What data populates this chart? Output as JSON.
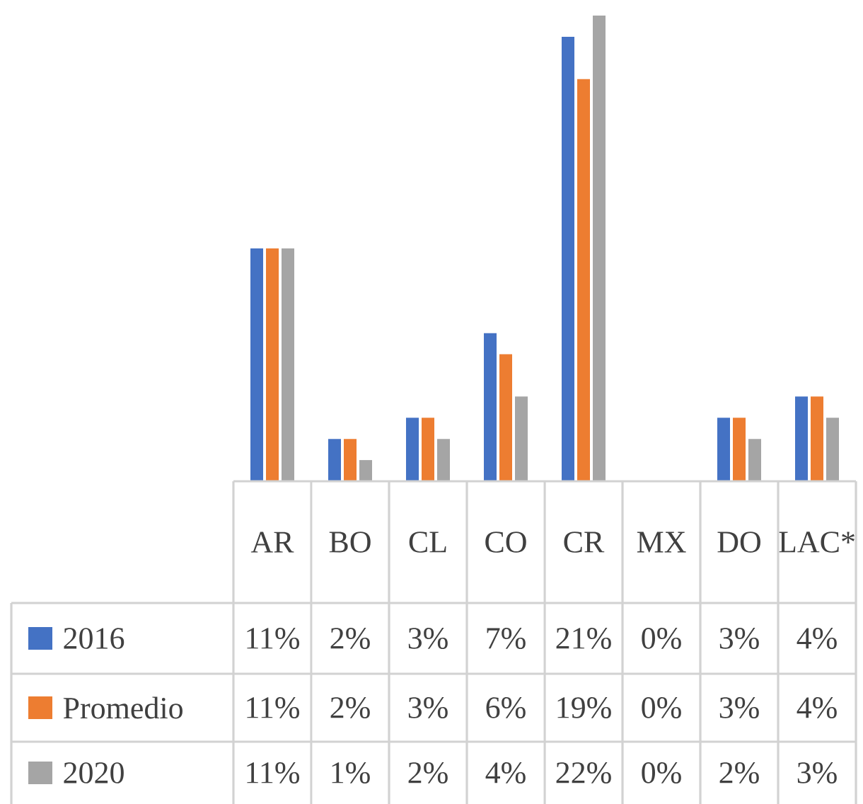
{
  "chart_data": {
    "type": "bar",
    "categories": [
      "AR",
      "BO",
      "CL",
      "CO",
      "CR",
      "MX",
      "DO",
      "LAC*"
    ],
    "series": [
      {
        "name": "2016",
        "color": "#4472c4",
        "values": [
          11,
          2,
          3,
          7,
          21,
          0,
          3,
          4
        ],
        "value_labels": [
          "11%",
          "2%",
          "3%",
          "7%",
          "21%",
          "0%",
          "3%",
          "4%"
        ]
      },
      {
        "name": "Promedio",
        "color": "#ed7d31",
        "values": [
          11,
          2,
          3,
          6,
          19,
          0,
          3,
          4
        ],
        "value_labels": [
          "11%",
          "2%",
          "3%",
          "6%",
          "19%",
          "0%",
          "3%",
          "4%"
        ]
      },
      {
        "name": "2020",
        "color": "#a5a5a5",
        "values": [
          11,
          1,
          2,
          4,
          22,
          0,
          2,
          3
        ],
        "value_labels": [
          "11%",
          "1%",
          "2%",
          "4%",
          "22%",
          "0%",
          "2%",
          "3%"
        ]
      }
    ],
    "legend": "bottom"
  }
}
